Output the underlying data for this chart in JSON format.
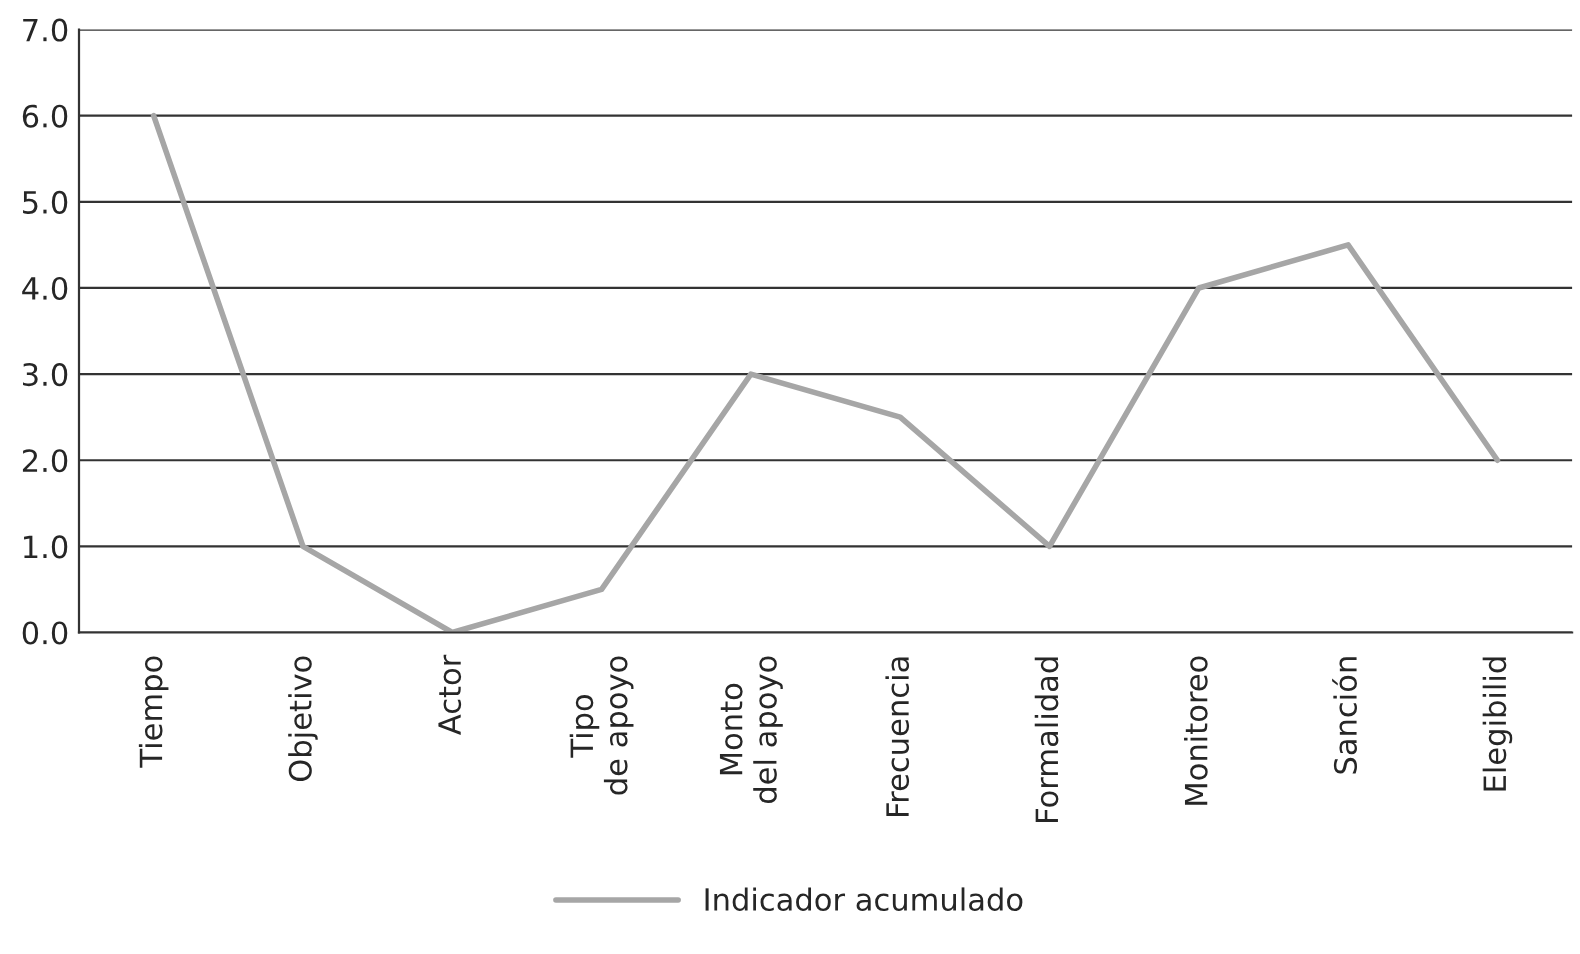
{
  "chart_data": {
    "type": "line",
    "categories": [
      "Tiempo",
      "Objetivo",
      "Actor",
      "Tipo\nde apoyo",
      "Monto\ndel apoyo",
      "Frecuencia",
      "Formalidad",
      "Monitoreo",
      "Sanción",
      "Elegibilid"
    ],
    "series": [
      {
        "name": "Indicador acumulado",
        "color": "#a6a6a6",
        "values": [
          6.0,
          1.0,
          0.0,
          0.5,
          3.0,
          2.5,
          1.0,
          4.0,
          4.5,
          2.0
        ]
      }
    ],
    "ylim": [
      0,
      7
    ],
    "yticks": [
      {
        "value": 0,
        "label": "0.0"
      },
      {
        "value": 1,
        "label": "1.0"
      },
      {
        "value": 2,
        "label": "2.0"
      },
      {
        "value": 3,
        "label": "3.0"
      },
      {
        "value": 4,
        "label": "4.0"
      },
      {
        "value": 5,
        "label": "5.0"
      },
      {
        "value": 6,
        "label": "6.0"
      },
      {
        "value": 7,
        "label": "7.0"
      }
    ],
    "grid": "y",
    "legend": "bottom",
    "marker": "none",
    "line_style": "solid"
  }
}
